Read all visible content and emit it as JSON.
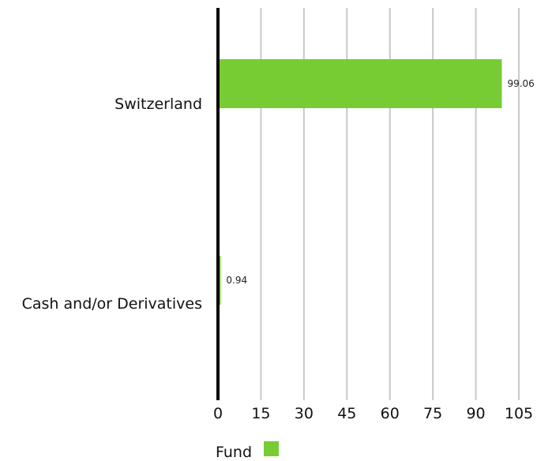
{
  "chart_data": {
    "type": "bar",
    "orientation": "horizontal",
    "categories": [
      "Switzerland",
      "Cash and/or Derivatives"
    ],
    "series": [
      {
        "name": "Fund",
        "values": [
          99.06,
          0.94
        ],
        "data_labels": [
          "99.06",
          "0.94"
        ],
        "color": "#77cc33"
      }
    ],
    "xlim": [
      0,
      105
    ],
    "x_ticks": [
      0,
      15,
      30,
      45,
      60,
      75,
      90,
      105
    ],
    "grid": true,
    "gridline_color": "#c8c8c8",
    "axis_color": "#000000",
    "legend": {
      "placement": "bottom-left",
      "entries": [
        "Fund"
      ]
    }
  }
}
